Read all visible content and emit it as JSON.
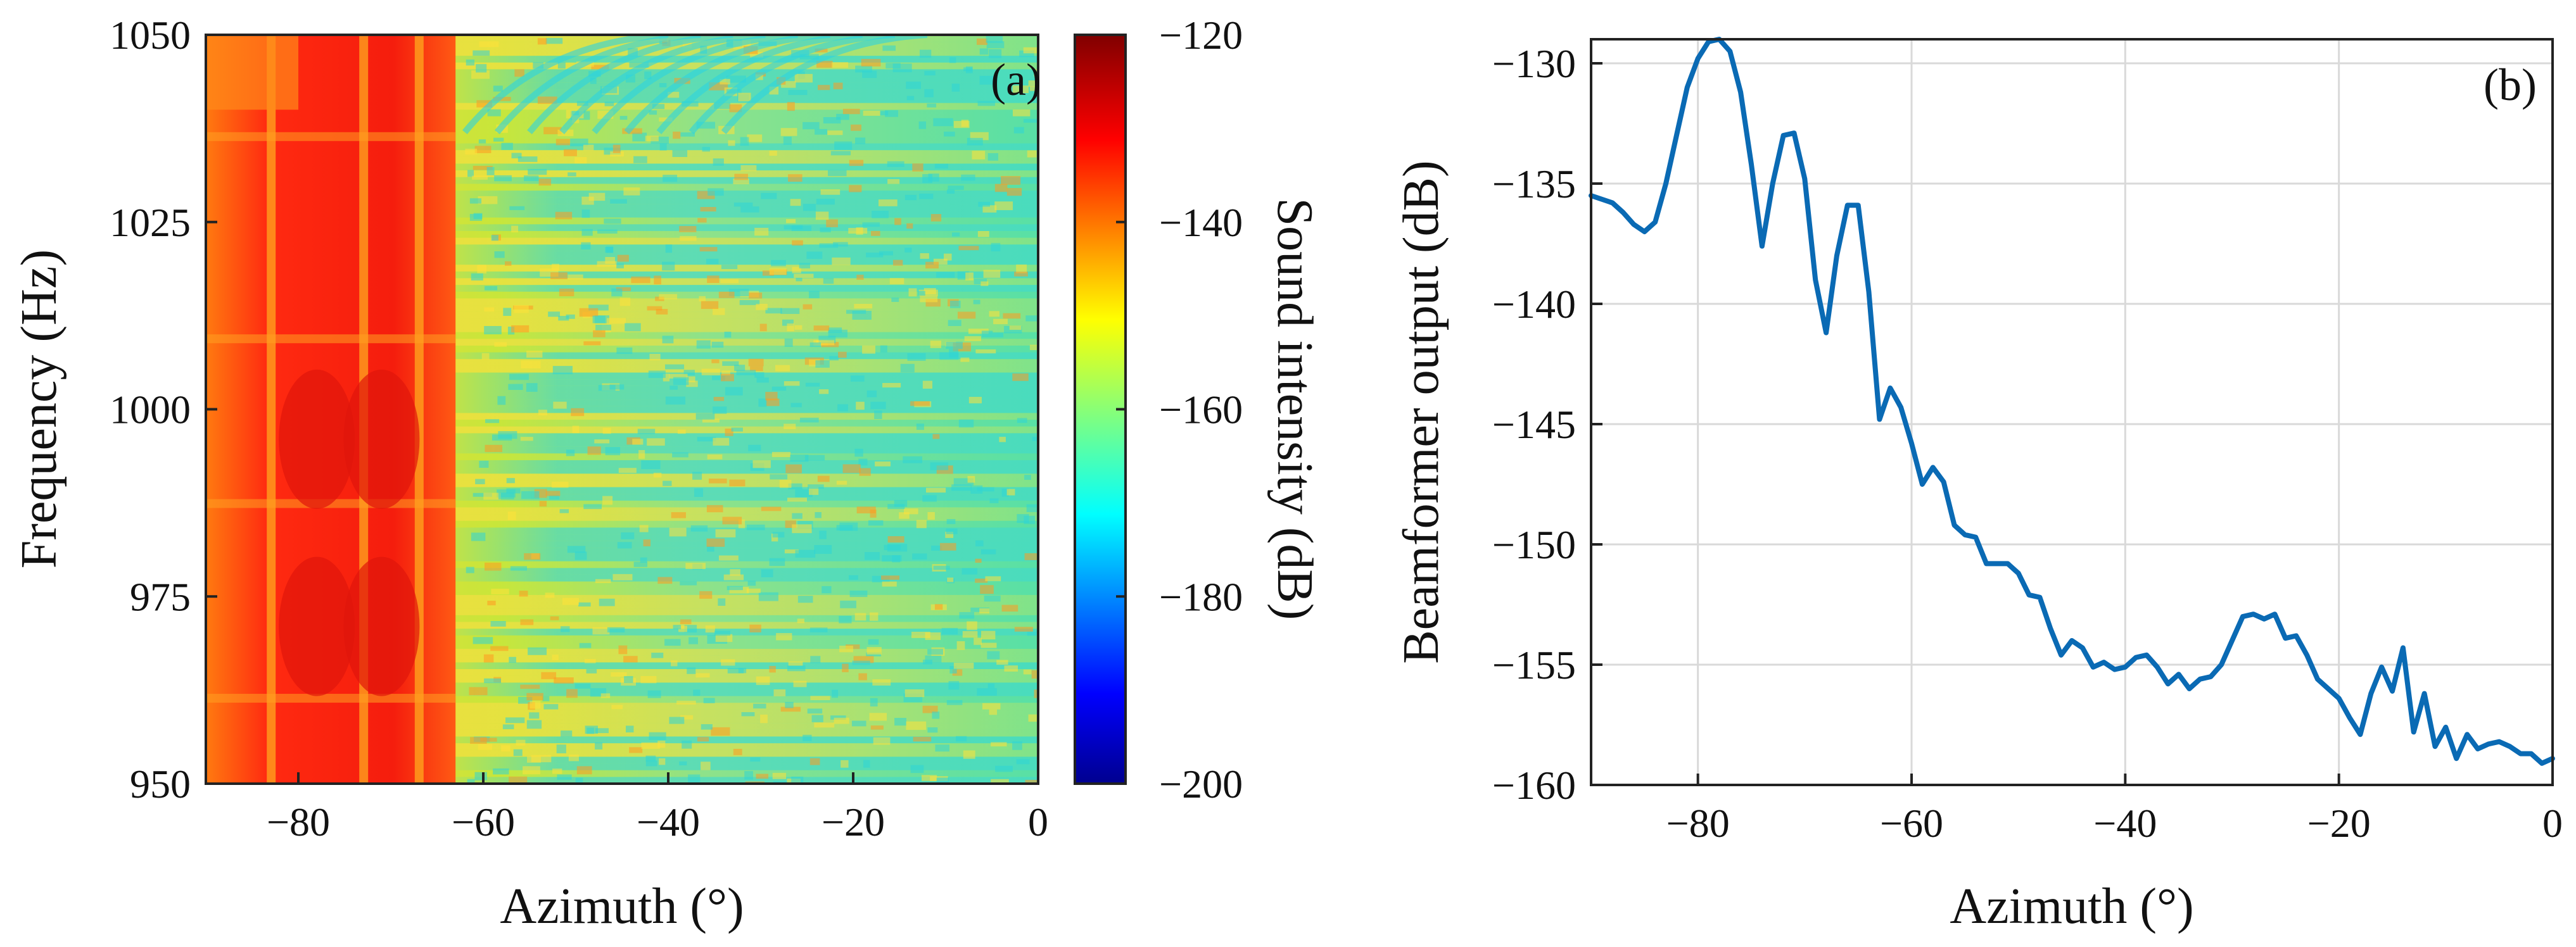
{
  "chart_data": [
    {
      "type": "heatmap",
      "panel_label": "(a)",
      "xlabel": "Azimuth (°)",
      "ylabel": "Frequency (Hz)",
      "xlim": [
        -90,
        0
      ],
      "ylim": [
        950,
        1050
      ],
      "x_ticks": [
        -80,
        -60,
        -40,
        -20,
        0
      ],
      "x_tick_labels": [
        "−80",
        "−60",
        "−40",
        "−20",
        "0"
      ],
      "y_ticks": [
        950,
        975,
        1000,
        1025,
        1050
      ],
      "y_tick_labels": [
        "950",
        "975",
        "1000",
        "1025",
        "1050"
      ],
      "colorbar": {
        "label": "Sound intensity (dB)",
        "range": [
          -200,
          -120
        ],
        "ticks": [
          -200,
          -180,
          -160,
          -140,
          -120
        ],
        "tick_labels": [
          "−200",
          "−180",
          "−160",
          "−140",
          "−120"
        ],
        "colormap": "jet"
      },
      "description_values": {
        "strong_region_azimuth_max": -63,
        "strong_level_db": -128,
        "background_level_db": -160
      }
    },
    {
      "type": "line",
      "panel_label": "(b)",
      "xlabel": "Azimuth (°)",
      "ylabel": "Beamformer output (dB)",
      "xlim": [
        -90,
        0
      ],
      "ylim": [
        -160,
        -129
      ],
      "grid": true,
      "x_ticks": [
        -80,
        -60,
        -40,
        -20,
        0
      ],
      "x_tick_labels": [
        "−80",
        "−60",
        "−40",
        "−20",
        "0"
      ],
      "y_ticks": [
        -160,
        -155,
        -150,
        -145,
        -140,
        -135,
        -130
      ],
      "y_tick_labels": [
        "−160",
        "−155",
        "−150",
        "−145",
        "−140",
        "−135",
        "−130"
      ],
      "series": [
        {
          "name": "Beamformer output",
          "color": "#0a6ab4",
          "x": [
            -90,
            -88,
            -87,
            -86,
            -85,
            -84,
            -83,
            -82,
            -81,
            -80,
            -79,
            -78,
            -77,
            -76,
            -75,
            -74,
            -73,
            -72,
            -71,
            -70,
            -69,
            -68,
            -67,
            -66,
            -65,
            -64,
            -63,
            -62,
            -61,
            -60,
            -59,
            -58,
            -57,
            -56,
            -55,
            -54,
            -53,
            -52,
            -51,
            -50,
            -49,
            -48,
            -47,
            -46,
            -45,
            -44,
            -43,
            -42,
            -41,
            -40,
            -39,
            -38,
            -37,
            -36,
            -35,
            -34,
            -33,
            -32,
            -31,
            -30,
            -29,
            -28,
            -27,
            -26,
            -25,
            -24,
            -23,
            -22,
            -21,
            -20,
            -19,
            -18,
            -17,
            -16,
            -15,
            -14,
            -13,
            -12,
            -11,
            -10,
            -9,
            -8,
            -7,
            -6,
            -5,
            -4,
            -3,
            -2,
            -1,
            0
          ],
          "y": [
            -135.5,
            -135.8,
            -136.2,
            -136.7,
            -137,
            -136.6,
            -135,
            -133,
            -131,
            -129.8,
            -129.1,
            -129,
            -129.5,
            -131.2,
            -134.2,
            -137.6,
            -135,
            -133,
            -132.9,
            -134.8,
            -139,
            -141.2,
            -138,
            -135.9,
            -135.9,
            -139.5,
            -144.8,
            -143.5,
            -144.3,
            -145.8,
            -147.5,
            -146.8,
            -147.4,
            -149.2,
            -149.6,
            -149.7,
            -150.8,
            -150.8,
            -150.8,
            -151.2,
            -152.1,
            -152.2,
            -153.5,
            -154.6,
            -154,
            -154.3,
            -155.1,
            -154.9,
            -155.2,
            -155.1,
            -154.7,
            -154.6,
            -155.1,
            -155.8,
            -155.4,
            -156,
            -155.6,
            -155.5,
            -155,
            -154,
            -153,
            -152.9,
            -153.1,
            -152.9,
            -153.9,
            -153.8,
            -154.6,
            -155.6,
            -156,
            -156.4,
            -157.2,
            -157.9,
            -156.2,
            -155.1,
            -156.1,
            -154.3,
            -157.8,
            -156.2,
            -158.4,
            -157.6,
            -158.9,
            -157.9,
            -158.5,
            -158.3,
            -158.2,
            -158.4,
            -158.7,
            -158.7,
            -159.1,
            -158.9
          ]
        }
      ]
    }
  ]
}
